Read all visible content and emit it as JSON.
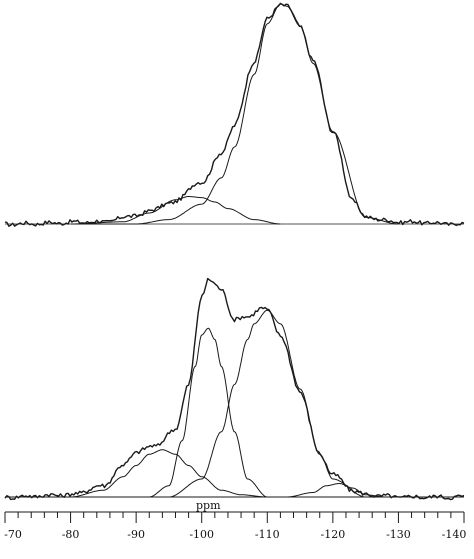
{
  "chart_data": [
    {
      "type": "line",
      "panel": "upper",
      "xlabel": "ppm",
      "xlim": [
        -70,
        -140
      ],
      "x_reversed": true,
      "grid": false,
      "legend": "none",
      "series": [
        {
          "role": "experimental spectrum (noisy trace)",
          "x": [
            -70,
            -85,
            -90,
            -95,
            -100,
            -103,
            -105,
            -108,
            -110,
            -112,
            -113,
            -115,
            -117,
            -120,
            -123,
            -125,
            -130,
            -140
          ],
          "y": [
            0,
            0.01,
            0.04,
            0.09,
            0.19,
            0.32,
            0.45,
            0.74,
            0.93,
            1.0,
            0.99,
            0.9,
            0.74,
            0.42,
            0.11,
            0.03,
            0.01,
            0
          ]
        },
        {
          "role": "fitted Gaussian component (main peak)",
          "x": [
            -80,
            -90,
            -95,
            -100,
            -103,
            -105,
            -108,
            -110,
            -112,
            -113,
            -115,
            -117,
            -120,
            -125,
            -130
          ],
          "y": [
            0,
            0.0,
            0.02,
            0.09,
            0.21,
            0.35,
            0.68,
            0.91,
            1.0,
            0.99,
            0.9,
            0.73,
            0.42,
            0.03,
            0
          ]
        },
        {
          "role": "fitted Gaussian component (shoulder)",
          "x": [
            -80,
            -88,
            -92,
            -96,
            -98,
            -100,
            -102,
            -104,
            -108,
            -112
          ],
          "y": [
            0,
            0.01,
            0.05,
            0.11,
            0.125,
            0.12,
            0.1,
            0.07,
            0.02,
            0
          ]
        }
      ]
    },
    {
      "type": "line",
      "panel": "lower",
      "xlabel": "ppm",
      "xlim": [
        -70,
        -140
      ],
      "x_reversed": true,
      "grid": false,
      "legend": "none",
      "series": [
        {
          "role": "experimental spectrum (noisy trace)",
          "x": [
            -70,
            -80,
            -85,
            -88,
            -90,
            -93,
            -96,
            -98,
            -100,
            -101,
            -103,
            -105,
            -107,
            -109,
            -110,
            -112,
            -115,
            -118,
            -120,
            -123,
            -125,
            -130,
            -140
          ],
          "y": [
            0,
            0.01,
            0.05,
            0.14,
            0.2,
            0.23,
            0.3,
            0.5,
            0.89,
            0.97,
            0.92,
            0.79,
            0.8,
            0.84,
            0.83,
            0.72,
            0.47,
            0.19,
            0.1,
            0.03,
            0.01,
            0,
            0
          ]
        },
        {
          "role": "fitted Gaussian component (~-94 ppm)",
          "x": [
            -80,
            -85,
            -88,
            -90,
            -92,
            -94,
            -96,
            -98,
            -100,
            -103,
            -106,
            -110
          ],
          "y": [
            0,
            0.03,
            0.09,
            0.14,
            0.19,
            0.21,
            0.19,
            0.14,
            0.09,
            0.03,
            0.01,
            0
          ]
        },
        {
          "role": "fitted Gaussian component (~-101 ppm)",
          "x": [
            -92,
            -95,
            -97,
            -99,
            -100,
            -101,
            -102,
            -103,
            -105,
            -107,
            -110
          ],
          "y": [
            0,
            0.05,
            0.25,
            0.58,
            0.72,
            0.75,
            0.7,
            0.58,
            0.29,
            0.08,
            0
          ]
        },
        {
          "role": "fitted Gaussian component (~-110 ppm)",
          "x": [
            -95,
            -100,
            -103,
            -105,
            -107,
            -108,
            -110,
            -112,
            -115,
            -118,
            -120,
            -125
          ],
          "y": [
            0,
            0.08,
            0.29,
            0.5,
            0.7,
            0.77,
            0.83,
            0.77,
            0.48,
            0.19,
            0.08,
            0
          ]
        },
        {
          "role": "fitted Gaussian component (~-121 ppm)",
          "x": [
            -113,
            -117,
            -119,
            -121,
            -123,
            -125,
            -128
          ],
          "y": [
            0,
            0.02,
            0.05,
            0.06,
            0.04,
            0.01,
            0
          ]
        },
        {
          "role": "fit residual",
          "x": [
            -70,
            -90,
            -100,
            -110,
            -120,
            -130,
            -140
          ],
          "y": [
            0,
            0,
            0,
            0,
            0,
            0,
            0
          ]
        }
      ]
    }
  ],
  "axis": {
    "label": "ppm",
    "ticks": [
      -70,
      -80,
      -90,
      -100,
      -110,
      -120,
      -130,
      -140
    ],
    "tick_labels": [
      "-70",
      "-80",
      "-90",
      "-100",
      "-110",
      "-120",
      "-130",
      "-140"
    ]
  },
  "style": {
    "line_color": "#1a1a1a"
  }
}
